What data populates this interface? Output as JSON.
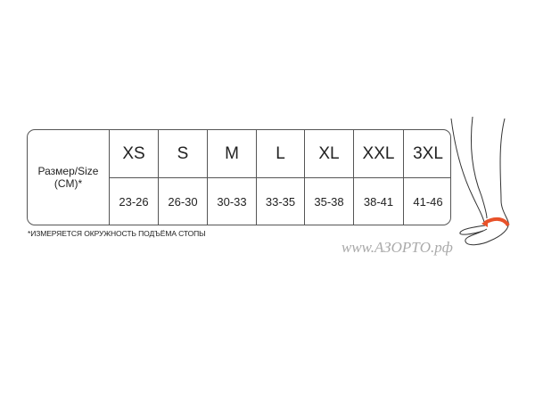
{
  "table": {
    "header_label_line1": "Размер/Size",
    "header_label_line2": "(CM)*",
    "sizes": [
      {
        "size": "XS",
        "range": "23-26"
      },
      {
        "size": "S",
        "range": "26-30"
      },
      {
        "size": "M",
        "range": "30-33"
      },
      {
        "size": "L",
        "range": "33-35"
      },
      {
        "size": "XL",
        "range": "35-38"
      },
      {
        "size": "XXL",
        "range": "38-41"
      },
      {
        "size": "3XL",
        "range": "41-46"
      }
    ]
  },
  "footnote": "*ИЗМЕРЯЕТСЯ ОКРУЖНОСТЬ ПОДЪЁМА СТОПЫ",
  "watermark": "www.АЗОРТО.рф",
  "colors": {
    "measure_arrow": "#e8522a",
    "border": "#555555"
  }
}
